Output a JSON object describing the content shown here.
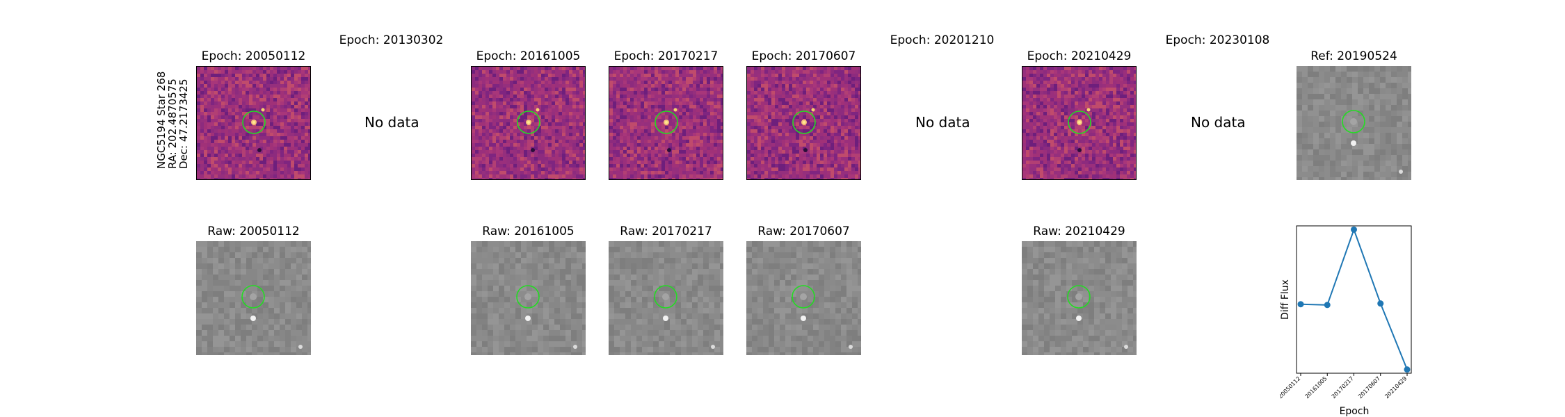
{
  "star_info": {
    "line1": "NGC5194 Star 268",
    "line2": "RA: 202.4870575",
    "line3": "Dec: 47.2173425"
  },
  "no_data_label": "No data",
  "diff_row": [
    {
      "title": "Epoch: 20050112",
      "has_data": true
    },
    {
      "title": "Epoch: 20130302",
      "has_data": false
    },
    {
      "title": "Epoch: 20161005",
      "has_data": true
    },
    {
      "title": "Epoch: 20170217",
      "has_data": true
    },
    {
      "title": "Epoch: 20170607",
      "has_data": true
    },
    {
      "title": "Epoch: 20201210",
      "has_data": false
    },
    {
      "title": "Epoch: 20210429",
      "has_data": true
    },
    {
      "title": "Epoch: 20230108",
      "has_data": false
    },
    {
      "title": "Ref: 20190524",
      "has_data": true
    }
  ],
  "raw_row": [
    {
      "title": "Raw: 20050112"
    },
    {
      "title": "Raw: 20161005"
    },
    {
      "title": "Raw: 20170217"
    },
    {
      "title": "Raw: 20170607"
    },
    {
      "title": "Raw: 20210429"
    }
  ],
  "colors": {
    "circle": "#22dd22",
    "line": "#1f77b4",
    "diff_base": "#a8367a",
    "raw_base": "#8a8a8a"
  },
  "chart_data": {
    "type": "line",
    "categories": [
      "20050112",
      "20161005",
      "20170217",
      "20170607",
      "20210429"
    ],
    "values": [
      0.0,
      -0.02,
      2.0,
      0.02,
      -1.75
    ],
    "xlabel": "Epoch",
    "ylabel": "Diff Flux",
    "ylim": [
      -1.85,
      2.1
    ],
    "grid": false
  }
}
